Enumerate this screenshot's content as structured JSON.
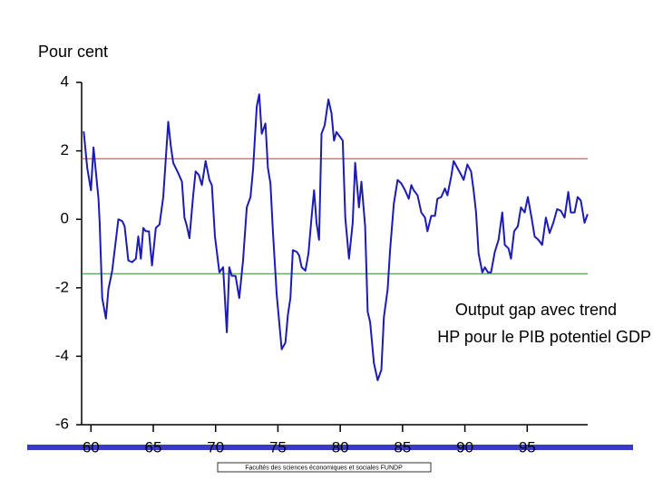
{
  "chart_data": {
    "type": "line",
    "y_label": "Pour cent",
    "annotation": [
      "Output gap avec trend",
      "HP pour le PIB potentiel GDP"
    ],
    "footer": "Facultés des sciences économiques et sociales FUNDP",
    "xlim": [
      59.25,
      100
    ],
    "xticks": [
      60,
      65,
      70,
      75,
      80,
      85,
      90,
      95
    ],
    "ylim": [
      -6,
      4
    ],
    "yticks": [
      -6,
      -4,
      -2,
      0,
      2,
      4
    ],
    "hlines": [
      {
        "value": 1.77,
        "color": "#e03030"
      },
      {
        "value": -1.59,
        "color": "#2a8a2a"
      }
    ],
    "x": [
      59.42,
      59.7,
      60,
      60.2,
      60.6,
      60.7,
      60.9,
      61.2,
      61.4,
      61.7,
      62.0,
      62.2,
      62.5,
      62.7,
      63.0,
      63.3,
      63.6,
      63.8,
      64.0,
      64.2,
      64.4,
      64.65,
      64.9,
      65.2,
      65.5,
      65.8,
      66.2,
      66.4,
      66.6,
      67.0,
      67.3,
      67.5,
      67.7,
      67.9,
      68.2,
      68.4,
      68.65,
      68.9,
      69.2,
      69.5,
      69.7,
      69.95,
      70.3,
      70.6,
      70.9,
      71.1,
      71.3,
      71.6,
      71.9,
      72.2,
      72.5,
      72.8,
      73.0,
      73.3,
      73.5,
      73.7,
      74.0,
      74.2,
      74.4,
      74.6,
      74.9,
      75.3,
      75.6,
      75.8,
      76.0,
      76.2,
      76.5,
      76.7,
      76.9,
      77.2,
      77.45,
      77.7,
      77.9,
      78.1,
      78.3,
      78.5,
      78.75,
      79.05,
      79.3,
      79.5,
      79.7,
      80.0,
      80.2,
      80.4,
      80.7,
      81.0,
      81.2,
      81.5,
      81.7,
      82.0,
      82.2,
      82.4,
      82.7,
      83.0,
      83.3,
      83.5,
      83.8,
      84.0,
      84.3,
      84.6,
      84.9,
      85.2,
      85.5,
      85.7,
      85.9,
      86.2,
      86.5,
      86.8,
      87.0,
      87.3,
      87.6,
      87.8,
      88.1,
      88.4,
      88.6,
      88.9,
      89.1,
      89.4,
      89.7,
      89.9,
      90.2,
      90.5,
      90.7,
      90.9,
      91.1,
      91.4,
      91.6,
      91.85,
      92.1,
      92.4,
      92.7,
      93.0,
      93.2,
      93.5,
      93.7,
      93.95,
      94.25,
      94.5,
      94.8,
      95.05,
      95.35,
      95.6,
      95.9,
      96.2,
      96.5,
      96.8,
      97.1,
      97.4,
      97.7,
      98.0,
      98.3,
      98.5,
      98.8,
      99.05,
      99.3,
      99.6,
      99.85
    ],
    "series": [
      {
        "name": "Output gap",
        "color": "#1c1cb4",
        "values": [
          2.57,
          1.5,
          0.85,
          2.1,
          0.6,
          -0.1,
          -2.3,
          -2.9,
          -2.05,
          -1.5,
          -0.6,
          0,
          -0.05,
          -0.2,
          -1.2,
          -1.25,
          -1.15,
          -0.5,
          -1.15,
          -0.25,
          -0.35,
          -0.35,
          -1.35,
          -0.25,
          -0.15,
          0.65,
          2.85,
          2.15,
          1.65,
          1.35,
          1.1,
          0.05,
          -0.2,
          -0.55,
          0.7,
          1.4,
          1.3,
          1.0,
          1.7,
          1.15,
          1.0,
          -0.5,
          -1.55,
          -1.4,
          -3.3,
          -1.4,
          -1.65,
          -1.65,
          -2.3,
          -1.2,
          0.35,
          0.65,
          1.45,
          3.3,
          3.65,
          2.5,
          2.8,
          1.5,
          1.05,
          -0.35,
          -2.2,
          -3.8,
          -3.6,
          -2.8,
          -2.3,
          -0.9,
          -0.95,
          -1.05,
          -1.4,
          -1.5,
          -1.0,
          0.05,
          0.85,
          -0.1,
          -0.6,
          2.5,
          2.75,
          3.5,
          3.1,
          2.3,
          2.55,
          2.4,
          2.3,
          0.05,
          -1.15,
          -0.1,
          1.65,
          0.35,
          1.1,
          -0.2,
          -2.7,
          -3.0,
          -4.2,
          -4.7,
          -4.4,
          -2.85,
          -2.05,
          -0.9,
          0.45,
          1.15,
          1.05,
          0.85,
          0.6,
          1.0,
          0.85,
          0.7,
          0.2,
          0.05,
          -0.35,
          0.1,
          0.1,
          0.6,
          0.65,
          0.9,
          0.7,
          1.25,
          1.7,
          1.5,
          1.3,
          1.15,
          1.6,
          1.4,
          0.85,
          0.2,
          -1.0,
          -1.55,
          -1.4,
          -1.55,
          -1.55,
          -0.95,
          -0.6,
          0.2,
          -0.75,
          -0.85,
          -1.15,
          -0.35,
          -0.2,
          0.35,
          0.2,
          0.65,
          0.05,
          -0.5,
          -0.6,
          -0.75,
          0.05,
          -0.4,
          -0.1,
          0.3,
          0.25,
          0.05,
          0.8,
          0.2,
          0.2,
          0.65,
          0.55,
          -0.1,
          0.15
        ]
      }
    ]
  }
}
